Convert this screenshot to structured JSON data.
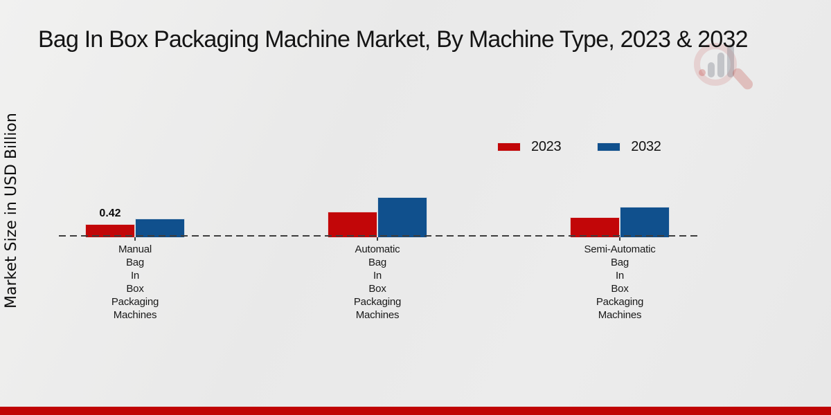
{
  "chart_data": {
    "type": "bar",
    "title": "Bag In Box Packaging Machine Market, By Machine Type, 2023 & 2032",
    "ylabel": "Market Size in USD Billion",
    "xlabel": "",
    "ylim": [
      0,
      1.4
    ],
    "grid": false,
    "legend_position": "top-right",
    "baseline_style": "dashed",
    "categories": [
      "Manual Bag In Box Packaging Machines",
      "Automatic Bag In Box Packaging Machines",
      "Semi-Automatic Bag In Box Packaging Machines"
    ],
    "categories_multiline": [
      "Manual\nBag\nIn\nBox\nPackaging\nMachines",
      "Automatic\nBag\nIn\nBox\nPackaging\nMachines",
      "Semi-Automatic\nBag\nIn\nBox\nPackaging\nMachines"
    ],
    "series": [
      {
        "name": "2023",
        "color": "#c20608",
        "values": [
          0.42,
          0.82,
          0.64
        ],
        "value_labels": [
          "0.42",
          "",
          ""
        ]
      },
      {
        "name": "2032",
        "color": "#10508d",
        "values": [
          0.6,
          1.28,
          0.97
        ],
        "value_labels": [
          "",
          "",
          ""
        ]
      }
    ]
  },
  "watermark": {
    "icon": "magnifier-bar-chart-logo"
  },
  "footer": {
    "accent_color": "#c00404"
  }
}
